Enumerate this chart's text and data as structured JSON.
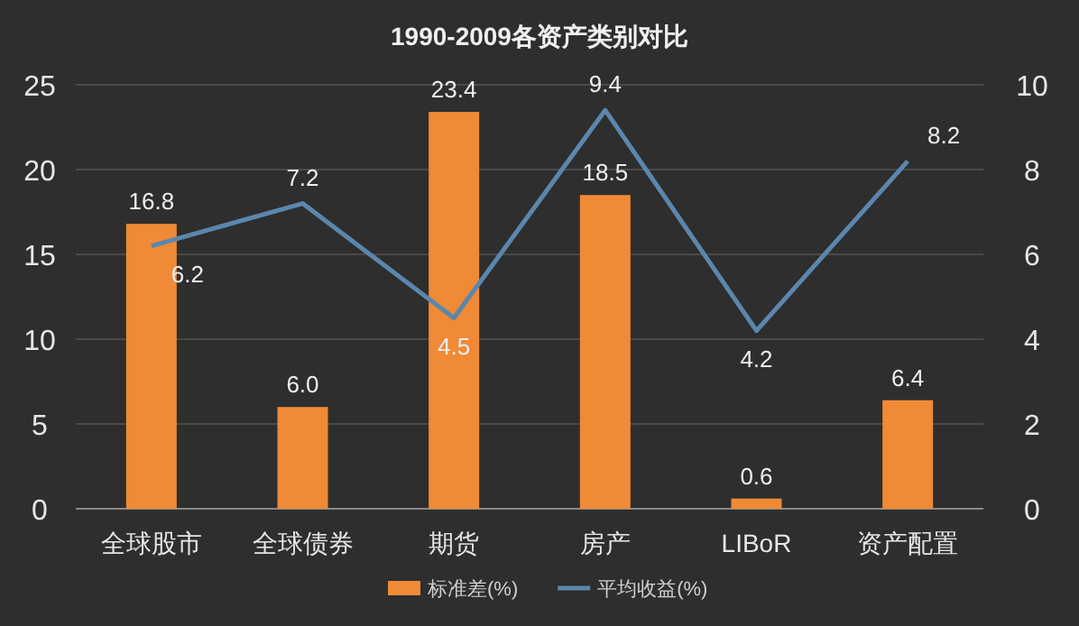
{
  "chart_data": {
    "type": "bar",
    "title": "1990-2009各资产类别对比",
    "categories": [
      "全球股市",
      "全球债券",
      "期货",
      "房产",
      "LIBoR",
      "资产配置"
    ],
    "series": [
      {
        "name": "标准差(%)",
        "color": "#f08a36",
        "values": [
          16.8,
          6.0,
          23.4,
          18.5,
          0.6,
          6.4
        ],
        "value_labels": [
          "16.8",
          "6.0",
          "23.4",
          "18.5",
          "0.6",
          "6.4"
        ]
      },
      {
        "name": "平均收益(%)",
        "type": "line",
        "axis": "y2",
        "color": "#5b87ad",
        "values": [
          6.2,
          7.2,
          4.5,
          9.4,
          4.2,
          8.2
        ]
      }
    ],
    "ylim": [
      0,
      25
    ],
    "yticks": [
      0,
      5,
      10,
      15,
      20,
      25
    ],
    "y2lim": [
      0,
      10
    ],
    "y2ticks": [
      0,
      2,
      4,
      6,
      8,
      10
    ],
    "grid": "y",
    "legend": "bottom",
    "data_labels": true
  }
}
